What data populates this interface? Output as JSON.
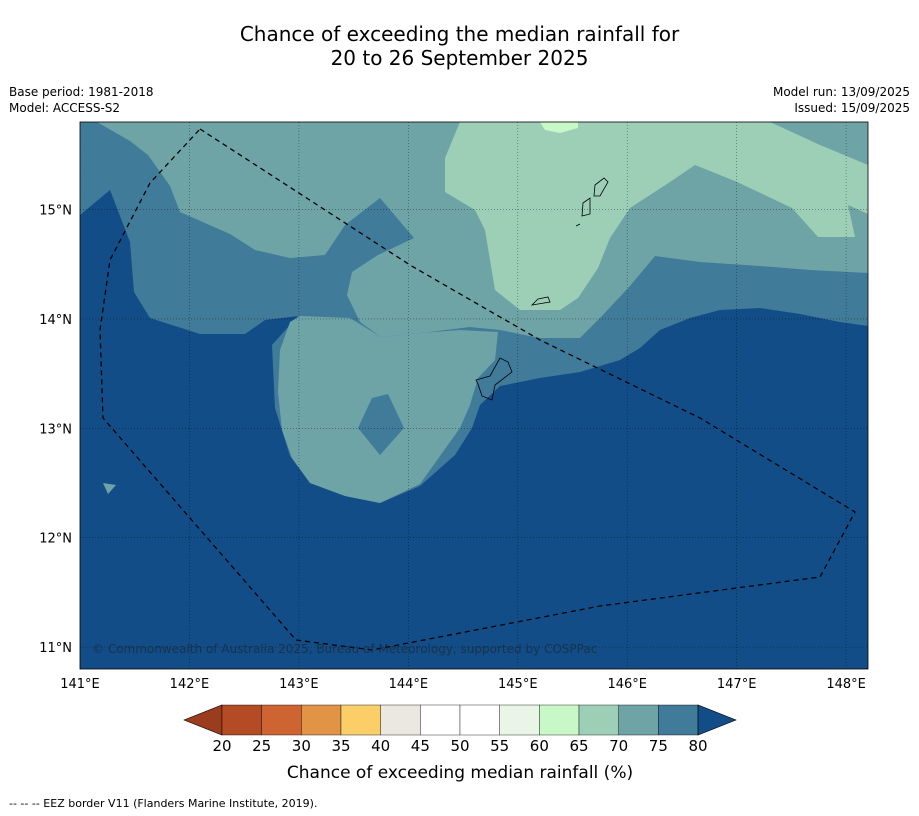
{
  "title": {
    "line1": "Chance of exceeding the median rainfall for",
    "line2": "20 to 26 September 2025"
  },
  "meta": {
    "base_period": "Base period: 1981-2018",
    "model": "Model: ACCESS-S2",
    "model_run": "Model run: 13/09/2025",
    "issued": "Issued: 15/09/2025"
  },
  "map": {
    "lon_range": [
      141.0,
      148.2
    ],
    "lat_range": [
      10.8,
      15.8
    ],
    "lon_ticks": [
      "141°E",
      "142°E",
      "143°E",
      "144°E",
      "145°E",
      "146°E",
      "147°E",
      "148°E"
    ],
    "lat_ticks": [
      "15°N",
      "14°N",
      "13°N",
      "12°N",
      "11°N"
    ],
    "copyright": "© Commonwealth of Australia 2025, Bureau of Meteorology, supported by COSPPac",
    "colors": {
      "above_80": "#134d87",
      "75_80": "#417b9a",
      "70_75": "#6ea4a6",
      "65_70": "#9dcfb7",
      "60_65": "#c8f7c8"
    }
  },
  "colorbar": {
    "labels": [
      "20",
      "25",
      "30",
      "35",
      "40",
      "45",
      "50",
      "55",
      "60",
      "65",
      "70",
      "75",
      "80"
    ],
    "colors": [
      "#9c3c1e",
      "#b44b24",
      "#cd6432",
      "#e19446",
      "#fcce68",
      "#ebe7e1",
      "#ffffff",
      "#ffffff",
      "#e8f5e7",
      "#c8f7c8",
      "#9dcfb7",
      "#6ea4a6",
      "#417b9a",
      "#134d87"
    ],
    "title": "Chance of exceeding median rainfall (%)"
  },
  "footer": "--  --  -- EEZ border V11 (Flanders Marine Institute, 2019)."
}
